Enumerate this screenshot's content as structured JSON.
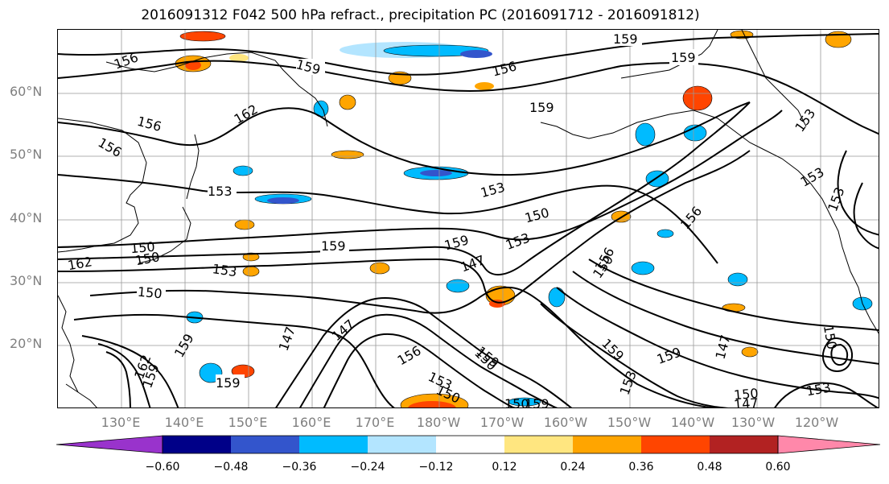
{
  "title": "2016091312 F042 500 hPa refract., precipitation PC (2016091712 - 2016091812)",
  "lat_labels": [
    "60°N",
    "50°N",
    "40°N",
    "30°N",
    "20°N"
  ],
  "lon_labels": [
    "130°E",
    "140°E",
    "150°E",
    "160°E",
    "170°E",
    "180°W",
    "170°W",
    "160°W",
    "150°W",
    "140°W",
    "130°W",
    "120°W"
  ],
  "colorbar": {
    "colors": [
      "#9933cc",
      "#000088",
      "#3355cc",
      "#00bbff",
      "#b3e5ff",
      "#ffffff",
      "#ffe680",
      "#ffa500",
      "#ff4500",
      "#b22222",
      "#ff88aa"
    ],
    "tick_labels": [
      "−0.60",
      "−0.48",
      "−0.36",
      "−0.24",
      "−0.12",
      "0.12",
      "0.24",
      "0.36",
      "0.48",
      "0.60"
    ]
  },
  "contour_labels": [
    "159",
    "159",
    "156",
    "156",
    "159",
    "162",
    "156",
    "156",
    "159",
    "153",
    "153",
    "153",
    "150",
    "153",
    "159",
    "150",
    "159",
    "147",
    "153",
    "162",
    "150",
    "153",
    "150",
    "147",
    "156",
    "150",
    "147",
    "156",
    "159",
    "159",
    "162",
    "159",
    "159",
    "153",
    "150",
    "150",
    "153",
    "159",
    "159",
    "147",
    "150",
    "153",
    "153",
    "150",
    "147",
    "159",
    "156",
    "150"
  ]
}
